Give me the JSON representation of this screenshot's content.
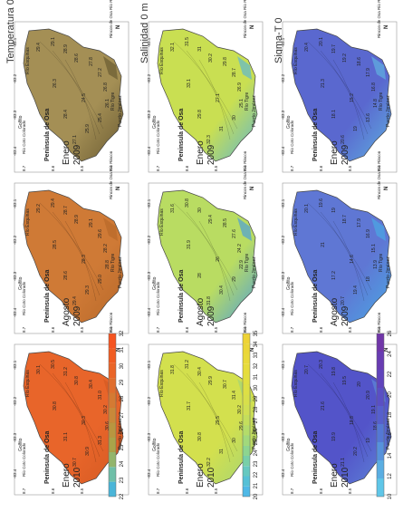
{
  "columns": [
    {
      "id": "temp",
      "title": "Temperatura 0",
      "colorbar": {
        "ticks": [
          "22",
          "23",
          "24",
          "25",
          "26",
          "27",
          "28",
          "29",
          "30",
          "31",
          "32"
        ],
        "colors": [
          "#4ab5d8",
          "#6fbfa8",
          "#93b56c",
          "#a9a34a",
          "#b89640",
          "#c8893a",
          "#d47a33",
          "#e06e2e",
          "#ea6528",
          "#f05c22",
          "#f55420"
        ]
      },
      "panels": [
        {
          "caption_month": "Enero",
          "caption_year": "2009",
          "fill": "#a48f55",
          "dark": "#6a5b32",
          "values": [
            "29.4",
            "29.1",
            "28.9",
            "28.6",
            "27.8",
            "27.2",
            "26.8",
            "26.1",
            "25.4",
            "25.9",
            "27.1",
            "28.4",
            "24.5",
            "26.3"
          ]
        },
        {
          "caption_month": "Agosto",
          "caption_year": "2009",
          "fill": "#cf7a36",
          "dark": "#b8692a",
          "values": [
            "29.2",
            "29.4",
            "28.7",
            "28.9",
            "29.1",
            "29.6",
            "28.2",
            "28.8",
            "29.0",
            "29.3",
            "29.4",
            "28.6",
            "28.3",
            "28.5"
          ]
        },
        {
          "caption_month": "Enero",
          "caption_year": "2010",
          "fill": "#e8652a",
          "dark": "#d45a22",
          "values": [
            "30.1",
            "30.5",
            "31.2",
            "30.8",
            "30.4",
            "31.0",
            "30.2",
            "30.6",
            "31.3",
            "30.9",
            "30.7",
            "31.1",
            "30.3",
            "30.8"
          ]
        }
      ]
    },
    {
      "id": "sal",
      "title": "Salinidad 0 m",
      "colorbar": {
        "ticks": [
          "20",
          "21",
          "22",
          "23",
          "24",
          "25",
          "26",
          "27",
          "28",
          "29",
          "30",
          "31",
          "32",
          "33",
          "34",
          "35"
        ],
        "colors": [
          "#4fb8e6",
          "#56c0d6",
          "#66c8c0",
          "#78cfa8",
          "#8dd590",
          "#a1d97c",
          "#b4dc6a",
          "#c4de5c",
          "#d0df52",
          "#d8df4a",
          "#dedf44",
          "#e2de40",
          "#e6dc3c",
          "#e9d93a",
          "#ebd638",
          "#eed336"
        ]
      },
      "panels": [
        {
          "caption_month": "Enero",
          "caption_year": "2009",
          "fill": "#c9df52",
          "dark": "#5fb6cf",
          "values": [
            "32.1",
            "31.5",
            "31",
            "30.2",
            "29.8",
            "28.7",
            "26.9",
            "25.1",
            "30",
            "31",
            "32.3",
            "29.8",
            "27.1",
            "33.1"
          ]
        },
        {
          "caption_month": "Agosto",
          "caption_year": "2009",
          "fill": "#b9dc62",
          "dark": "#4f9fd6",
          "values": [
            "31.6",
            "30.8",
            "30",
            "29.4",
            "28.5",
            "27.6",
            "24.2",
            "22.9",
            "29",
            "30.4",
            "31.8",
            "28",
            "26",
            "31.9"
          ]
        },
        {
          "caption_month": "Enero",
          "caption_year": "2010",
          "fill": "#d3e04e",
          "dark": "#a2d477",
          "values": [
            "31.8",
            "31.2",
            "30.4",
            "29.9",
            "30.7",
            "31.4",
            "30.2",
            "29.6",
            "30",
            "31",
            "32.2",
            "30.8",
            "29.5",
            "31.7"
          ]
        }
      ]
    },
    {
      "id": "sig",
      "title": "Sigma-T 0",
      "colorbar": {
        "ticks": [
          "10",
          "12",
          "14",
          "16",
          "18",
          "20",
          "22",
          "24",
          "26"
        ],
        "colors": [
          "#5fc6e8",
          "#5aaee2",
          "#5692dc",
          "#5478d4",
          "#565fcc",
          "#5a4fc4",
          "#6044bc",
          "#683cb2",
          "#7036a8"
        ]
      },
      "panels": [
        {
          "caption_month": "Enero",
          "caption_year": "2009",
          "fill": "#5a68cf",
          "dark": "#5fb0e0",
          "values": [
            "20.4",
            "20.1",
            "19.7",
            "19.2",
            "18.6",
            "17.9",
            "16.8",
            "14.8",
            "13.6",
            "19",
            "20.6",
            "18.1",
            "15.2",
            "21.3"
          ]
        },
        {
          "caption_month": "Agosto",
          "caption_year": "2009",
          "fill": "#5f77d4",
          "dark": "#4aa8e4",
          "values": [
            "20.1",
            "19.6",
            "19",
            "18.7",
            "17.9",
            "16.9",
            "15.1",
            "13.9",
            "18",
            "19.4",
            "20.7",
            "17.2",
            "14.6",
            "21"
          ]
        },
        {
          "caption_month": "Enero",
          "caption_year": "2010",
          "fill": "#5354c9",
          "dark": "#5e88d8",
          "values": [
            "20.7",
            "20.3",
            "19.8",
            "19.5",
            "20",
            "20.9",
            "19.1",
            "18.6",
            "19",
            "20.2",
            "21.1",
            "19.9",
            "18.8",
            "21.6"
          ]
        }
      ]
    }
  ],
  "place_labels": {
    "peninsula": "Peninsula de Osa",
    "esquinas": "Río Esquinas",
    "golfito": "Golfito",
    "tigre": "Río Tigre",
    "jimenez": "Puerto Jiménez",
    "coto": "Río Coto Colorado",
    "rincon": "Rincon de Osa Río Rincon"
  },
  "lat_ticks": [
    "8.7",
    "8.6",
    "8.5",
    "8.4"
  ],
  "lon_ticks": [
    "-83.4",
    "-83.3",
    "-83.2",
    "-83.1"
  ],
  "north": "N"
}
